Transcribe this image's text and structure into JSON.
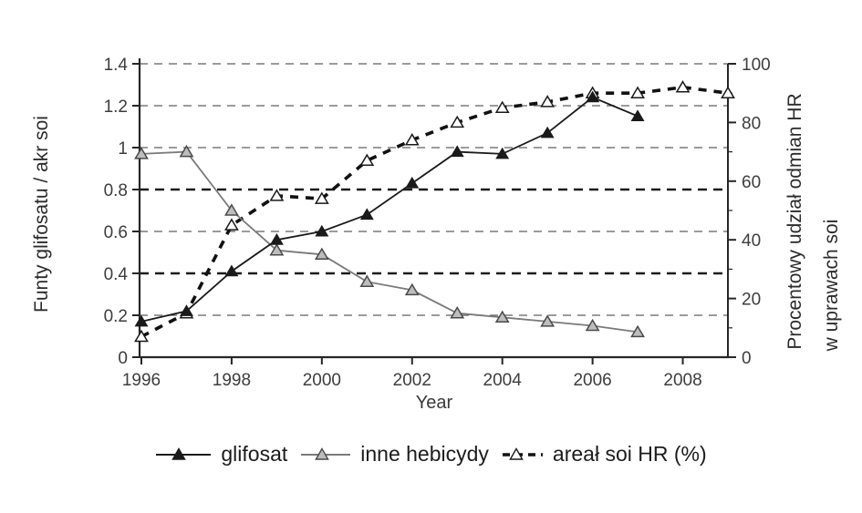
{
  "chart_data": {
    "type": "line",
    "title": "",
    "x_axis": {
      "label": "Year",
      "tick_labels": [
        "1996",
        "1998",
        "2000",
        "2002",
        "2004",
        "2006",
        "2008"
      ],
      "tick_years": [
        1996,
        1998,
        2000,
        2002,
        2004,
        2006,
        2008
      ],
      "range": [
        1996,
        2009
      ]
    },
    "left_axis": {
      "label": "Funty glifosatu / akr soi",
      "tick_labels": [
        "1.4",
        "1.2",
        "1",
        "0.8",
        "0.6",
        "0.4",
        "0.2",
        "0"
      ],
      "tick_values": [
        1.4,
        1.2,
        1,
        0.8,
        0.6,
        0.4,
        0.2,
        0
      ],
      "range": [
        0,
        1.4
      ]
    },
    "right_axis": {
      "label_line1": "Procentowy udział odmian HR",
      "label_line2": "w uprawach soi",
      "tick_labels": [
        "100",
        "80",
        "60",
        "40",
        "20",
        "0"
      ],
      "tick_values": [
        100,
        80,
        60,
        40,
        20,
        0
      ],
      "minor_tick_values": [
        90,
        70,
        50,
        30,
        10
      ],
      "range": [
        0,
        100
      ]
    },
    "gridlines": {
      "values": [
        0.2,
        0.4,
        0.6,
        0.8,
        1.0,
        1.2,
        1.4
      ],
      "bold": [
        0.4,
        0.8
      ],
      "style": "dashed"
    },
    "series": [
      {
        "name": "glifosat",
        "axis": "left",
        "line_style": "solid",
        "marker": "triangle-filled-black",
        "color": "#1a1a1a",
        "marker_fill": "#1a1a1a",
        "marker_stroke": "#1a1a1a",
        "years": [
          1996,
          1997,
          1998,
          1999,
          2000,
          2001,
          2002,
          2003,
          2004,
          2005,
          2006,
          2007
        ],
        "values": [
          0.17,
          0.22,
          0.41,
          0.56,
          0.6,
          0.68,
          0.83,
          0.98,
          0.97,
          1.07,
          1.24,
          1.15
        ]
      },
      {
        "name": "inne hebicydy",
        "axis": "left",
        "line_style": "solid",
        "marker": "triangle-filled-gray",
        "color": "#7a7a7a",
        "marker_fill": "#bdbdbd",
        "marker_stroke": "#4a4a4a",
        "years": [
          1996,
          1997,
          1998,
          1999,
          2000,
          2001,
          2002,
          2003,
          2004,
          2005,
          2006,
          2007
        ],
        "values": [
          0.97,
          0.98,
          0.7,
          0.51,
          0.49,
          0.36,
          0.32,
          0.21,
          0.19,
          0.17,
          0.15,
          0.12
        ]
      },
      {
        "name": "areał soi HR (%)",
        "axis": "right",
        "line_style": "dashed",
        "marker": "triangle-open",
        "color": "#111111",
        "marker_fill": "#ffffff",
        "marker_stroke": "#1a1a1a",
        "years": [
          1996,
          1997,
          1998,
          1999,
          2000,
          2001,
          2002,
          2003,
          2004,
          2005,
          2006,
          2007,
          2008,
          2009
        ],
        "values": [
          7,
          15,
          45,
          55,
          54,
          67,
          74,
          80,
          85,
          87,
          90,
          90,
          92,
          90
        ]
      }
    ],
    "legend": {
      "position": "bottom",
      "items": [
        "glifosat",
        "inne hebicydy",
        "areał soi HR (%)"
      ]
    }
  }
}
